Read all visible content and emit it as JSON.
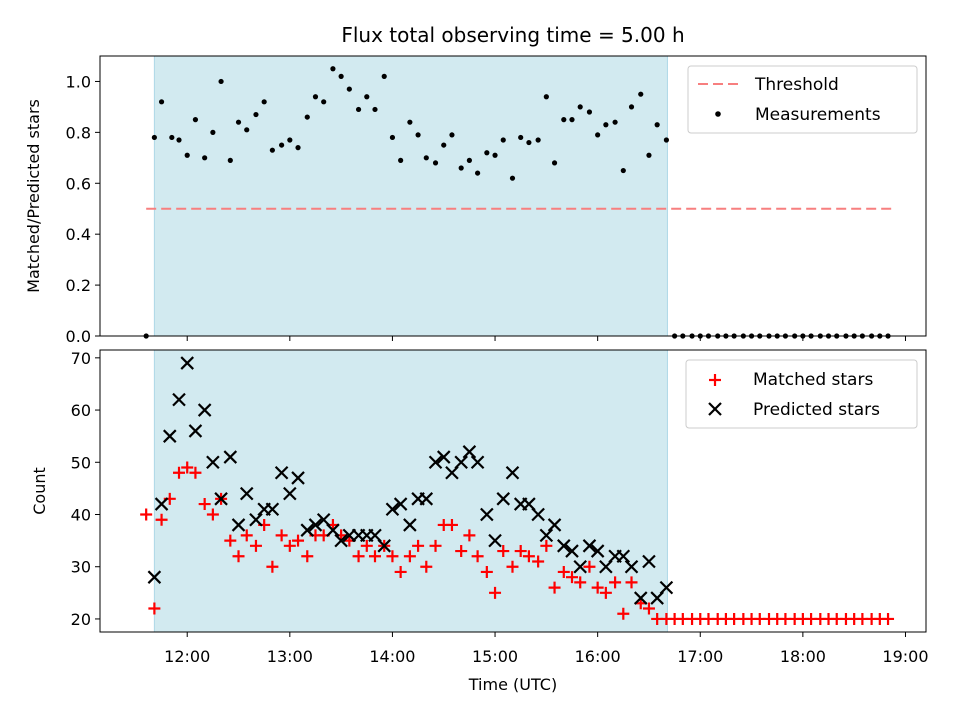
{
  "chart_data": [
    {
      "type": "scatter",
      "title": "Flux total observing time = 5.00 h",
      "xlabel": "",
      "ylabel": "Matched/Predicted stars",
      "xlim": [
        11.15,
        19.2
      ],
      "ylim": [
        0.0,
        1.1
      ],
      "yticks": [
        0.0,
        0.2,
        0.4,
        0.6,
        0.8,
        1.0
      ],
      "ytick_labels": [
        "0.0",
        "0.2",
        "0.4",
        "0.6",
        "0.8",
        "1.0"
      ],
      "shaded_span": {
        "x0": 11.68,
        "x1": 16.68,
        "color": "#d2eaf0"
      },
      "threshold": {
        "name": "Threshold",
        "value": 0.5,
        "x0": 11.6,
        "x1": 18.88,
        "color": "#f77f7f",
        "style": "dashed"
      },
      "legend": [
        "Threshold",
        "Measurements"
      ],
      "legend_position": "top-right",
      "series": [
        {
          "name": "Measurements",
          "marker": "dot",
          "color": "#000000",
          "x": [
            11.6,
            11.68,
            11.75,
            11.85,
            11.92,
            12.0,
            12.08,
            12.17,
            12.25,
            12.33,
            12.42,
            12.5,
            12.58,
            12.67,
            12.75,
            12.83,
            12.92,
            13.0,
            13.08,
            13.17,
            13.25,
            13.33,
            13.42,
            13.5,
            13.58,
            13.67,
            13.75,
            13.83,
            13.92,
            14.0,
            14.08,
            14.17,
            14.25,
            14.33,
            14.42,
            14.5,
            14.58,
            14.67,
            14.75,
            14.83,
            14.92,
            15.0,
            15.08,
            15.17,
            15.25,
            15.33,
            15.42,
            15.5,
            15.58,
            15.67,
            15.75,
            15.83,
            15.92,
            16.0,
            16.08,
            16.17,
            16.25,
            16.33,
            16.42,
            16.5,
            16.58,
            16.67,
            16.75,
            16.83,
            16.92,
            17.0,
            17.08,
            17.17,
            17.25,
            17.33,
            17.42,
            17.5,
            17.58,
            17.67,
            17.75,
            17.83,
            17.92,
            18.0,
            18.08,
            18.17,
            18.25,
            18.33,
            18.42,
            18.5,
            18.58,
            18.67,
            18.75,
            18.83
          ],
          "y": [
            0.0,
            0.78,
            0.92,
            0.78,
            0.77,
            0.71,
            0.85,
            0.7,
            0.8,
            1.0,
            0.69,
            0.84,
            0.81,
            0.87,
            0.92,
            0.73,
            0.75,
            0.77,
            0.74,
            0.86,
            0.94,
            0.92,
            1.05,
            1.02,
            0.97,
            0.89,
            0.94,
            0.89,
            1.02,
            0.78,
            0.69,
            0.84,
            0.79,
            0.7,
            0.68,
            0.75,
            0.79,
            0.66,
            0.69,
            0.64,
            0.72,
            0.71,
            0.77,
            0.62,
            0.78,
            0.76,
            0.77,
            0.94,
            0.68,
            0.85,
            0.85,
            0.9,
            0.88,
            0.79,
            0.83,
            0.84,
            0.65,
            0.9,
            0.95,
            0.71,
            0.83,
            0.77,
            0.0,
            0.0,
            0.0,
            0.0,
            0.0,
            0.0,
            0.0,
            0.0,
            0.0,
            0.0,
            0.0,
            0.0,
            0.0,
            0.0,
            0.0,
            0.0,
            0.0,
            0.0,
            0.0,
            0.0,
            0.0,
            0.0,
            0.0,
            0.0,
            0.0,
            0.0
          ]
        }
      ]
    },
    {
      "type": "scatter",
      "title": "",
      "xlabel": "Time (UTC)",
      "ylabel": "Count",
      "xlim": [
        11.15,
        19.2
      ],
      "ylim": [
        17.5,
        71.5
      ],
      "xticks": [
        12,
        13,
        14,
        15,
        16,
        17,
        18,
        19
      ],
      "xtick_labels": [
        "12:00",
        "13:00",
        "14:00",
        "15:00",
        "16:00",
        "17:00",
        "18:00",
        "19:00"
      ],
      "yticks": [
        20,
        30,
        40,
        50,
        60,
        70
      ],
      "ytick_labels": [
        "20",
        "30",
        "40",
        "50",
        "60",
        "70"
      ],
      "shaded_span": {
        "x0": 11.68,
        "x1": 16.68,
        "color": "#d2eaf0"
      },
      "legend": [
        "Matched stars",
        "Predicted stars"
      ],
      "legend_position": "top-right",
      "series": [
        {
          "name": "Matched stars",
          "marker": "plus",
          "color": "#ff0000",
          "x": [
            11.6,
            11.68,
            11.75,
            11.83,
            11.92,
            12.0,
            12.08,
            12.17,
            12.25,
            12.33,
            12.42,
            12.5,
            12.58,
            12.67,
            12.75,
            12.83,
            12.92,
            13.0,
            13.08,
            13.17,
            13.25,
            13.33,
            13.42,
            13.5,
            13.58,
            13.67,
            13.75,
            13.83,
            13.92,
            14.0,
            14.08,
            14.17,
            14.25,
            14.33,
            14.42,
            14.5,
            14.58,
            14.67,
            14.75,
            14.83,
            14.92,
            15.0,
            15.08,
            15.17,
            15.25,
            15.33,
            15.42,
            15.5,
            15.58,
            15.67,
            15.75,
            15.83,
            15.92,
            16.0,
            16.08,
            16.17,
            16.25,
            16.33,
            16.42,
            16.5,
            16.58,
            16.67,
            16.75,
            16.83,
            16.92,
            17.0,
            17.08,
            17.17,
            17.25,
            17.33,
            17.42,
            17.5,
            17.58,
            17.67,
            17.75,
            17.83,
            17.92,
            18.0,
            18.08,
            18.17,
            18.25,
            18.33,
            18.42,
            18.5,
            18.58,
            18.67,
            18.75,
            18.83
          ],
          "y": [
            40,
            22,
            39,
            43,
            48,
            49,
            48,
            42,
            40,
            43,
            35,
            32,
            36,
            34,
            38,
            30,
            36,
            34,
            35,
            32,
            36,
            36,
            38,
            36,
            35,
            32,
            34,
            32,
            34,
            32,
            29,
            32,
            34,
            30,
            34,
            38,
            38,
            33,
            36,
            32,
            29,
            25,
            33,
            30,
            33,
            32,
            31,
            34,
            26,
            29,
            28,
            27,
            30,
            26,
            25,
            27,
            21,
            27,
            23,
            22,
            20,
            20,
            20,
            20,
            20,
            20,
            20,
            20,
            20,
            20,
            20,
            20,
            20,
            20,
            20,
            20,
            20,
            20,
            20,
            20,
            20,
            20,
            20,
            20,
            20,
            20,
            20,
            20
          ]
        },
        {
          "name": "Predicted stars",
          "marker": "x",
          "color": "#000000",
          "x": [
            11.68,
            11.75,
            11.83,
            11.92,
            12.0,
            12.08,
            12.17,
            12.25,
            12.33,
            12.42,
            12.5,
            12.58,
            12.67,
            12.75,
            12.83,
            12.92,
            13.0,
            13.08,
            13.17,
            13.25,
            13.33,
            13.42,
            13.5,
            13.58,
            13.67,
            13.75,
            13.83,
            13.92,
            14.0,
            14.08,
            14.17,
            14.25,
            14.33,
            14.42,
            14.5,
            14.58,
            14.67,
            14.75,
            14.83,
            14.92,
            15.0,
            15.08,
            15.17,
            15.25,
            15.33,
            15.42,
            15.5,
            15.58,
            15.67,
            15.75,
            15.83,
            15.92,
            16.0,
            16.08,
            16.17,
            16.25,
            16.33,
            16.42,
            16.5,
            16.58,
            16.67
          ],
          "y": [
            28,
            42,
            55,
            62,
            69,
            56,
            60,
            50,
            43,
            51,
            38,
            44,
            39,
            41,
            41,
            48,
            44,
            47,
            37,
            38,
            39,
            37,
            35,
            36,
            36,
            36,
            36,
            34,
            41,
            42,
            38,
            43,
            43,
            50,
            51,
            48,
            50,
            52,
            50,
            40,
            35,
            43,
            48,
            42,
            42,
            40,
            36,
            38,
            34,
            33,
            30,
            34,
            33,
            30,
            32,
            32,
            30,
            24,
            31,
            24,
            26
          ]
        }
      ]
    }
  ]
}
